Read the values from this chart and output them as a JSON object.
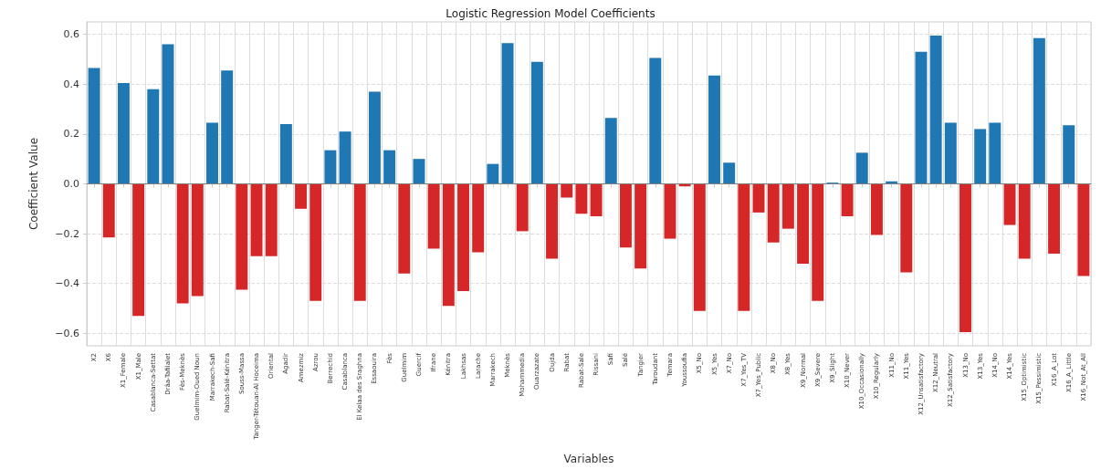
{
  "chart_data": {
    "type": "bar",
    "title": "Logistic Regression Model Coefficients",
    "xlabel": "Variables",
    "ylabel": "Coefficient Value",
    "categories": [
      "X2",
      "X6",
      "X1_Female",
      "X1_Male",
      "Casablanca-Settat",
      "Drâa-Tafilalet",
      "Fès-Meknès",
      "Guelmim-Oued Noun",
      "Marrakech-Safi",
      "Rabat-Salé-Kénitra",
      "Souss-Massa",
      "Tanger-Tétouan-Al Hoceima",
      "Oriental",
      "Agadir",
      "Amezmiz",
      "Azrou",
      "Berrechid",
      "Casablanca",
      "El Kelaa des Sraghna",
      "Essaouira",
      "Fès",
      "Guelmim",
      "Guercif",
      "Ifrane",
      "Kénitra",
      "Lakhsas",
      "Larache",
      "Marrakech",
      "Meknès",
      "Mohammedia",
      "Ouarzazate",
      "Oujda",
      "Rabat",
      "Rabat-Sale",
      "Rissani",
      "Safi",
      "Salé",
      "Tangier",
      "Taroudant",
      "Temara",
      "Youssoufia",
      "X5_No",
      "X5_Yes",
      "X7_No",
      "X7_Yes_TV",
      "X7_Yes_Public",
      "X8_No",
      "X8_Yes",
      "X9_Normal",
      "X9_Severe",
      "X9_Slight",
      "X10_Never",
      "X10_Occasionally",
      "X10_Regularly",
      "X11_No",
      "X11_Yes",
      "X12_Unsatisfactory",
      "X12_Neutral",
      "X12_Satisfactory",
      "X13_No",
      "X13_Yes",
      "X14_No",
      "X14_Yes",
      "X15_Optimistic",
      "X15_Pessimistic",
      "X16_A_Lot",
      "X16_A_Little",
      "X16_Not_At_All"
    ],
    "values": [
      0.465,
      -0.215,
      0.405,
      -0.53,
      0.38,
      0.56,
      -0.48,
      -0.45,
      0.245,
      0.455,
      -0.425,
      -0.29,
      -0.29,
      0.24,
      -0.1,
      -0.47,
      0.135,
      0.21,
      -0.47,
      0.37,
      0.135,
      -0.36,
      0.1,
      -0.26,
      -0.49,
      -0.43,
      -0.275,
      0.08,
      0.565,
      -0.19,
      0.49,
      -0.3,
      -0.055,
      -0.12,
      -0.13,
      0.265,
      -0.255,
      -0.34,
      0.505,
      -0.22,
      -0.01,
      -0.51,
      0.435,
      0.085,
      -0.51,
      -0.115,
      -0.235,
      -0.18,
      -0.32,
      -0.47,
      0.005,
      -0.13,
      0.125,
      -0.205,
      0.01,
      -0.355,
      0.53,
      0.595,
      0.245,
      -0.595,
      0.22,
      0.245,
      -0.165,
      -0.3,
      0.585,
      -0.28,
      0.235,
      -0.37
    ],
    "colors": [
      "#1f77b4",
      "#d62728",
      "#1f77b4",
      "#d62728",
      "#1f77b4",
      "#1f77b4",
      "#d62728",
      "#d62728",
      "#1f77b4",
      "#1f77b4",
      "#d62728",
      "#d62728",
      "#d62728",
      "#1f77b4",
      "#d62728",
      "#d62728",
      "#1f77b4",
      "#1f77b4",
      "#d62728",
      "#1f77b4",
      "#1f77b4",
      "#d62728",
      "#1f77b4",
      "#d62728",
      "#d62728",
      "#d62728",
      "#d62728",
      "#1f77b4",
      "#1f77b4",
      "#d62728",
      "#1f77b4",
      "#d62728",
      "#d62728",
      "#d62728",
      "#d62728",
      "#1f77b4",
      "#d62728",
      "#d62728",
      "#1f77b4",
      "#d62728",
      "#d62728",
      "#d62728",
      "#1f77b4",
      "#1f77b4",
      "#d62728",
      "#d62728",
      "#d62728",
      "#d62728",
      "#d62728",
      "#d62728",
      "#1f77b4",
      "#d62728",
      "#1f77b4",
      "#d62728",
      "#1f77b4",
      "#d62728",
      "#1f77b4",
      "#1f77b4",
      "#1f77b4",
      "#d62728",
      "#1f77b4",
      "#1f77b4",
      "#d62728",
      "#d62728",
      "#1f77b4",
      "#d62728",
      "#1f77b4",
      "#d62728"
    ],
    "ylim": [
      -0.65,
      0.65
    ],
    "yticks": [
      {
        "value": -0.6,
        "label": "−0.6"
      },
      {
        "value": -0.4,
        "label": "−0.4"
      },
      {
        "value": -0.2,
        "label": "−0.2"
      },
      {
        "value": 0,
        "label": "0.0"
      },
      0.2,
      0.4,
      0.6
    ],
    "grid": true,
    "ref_lines": [
      {
        "axis": "y",
        "value": 0,
        "color": "#808080"
      }
    ]
  }
}
